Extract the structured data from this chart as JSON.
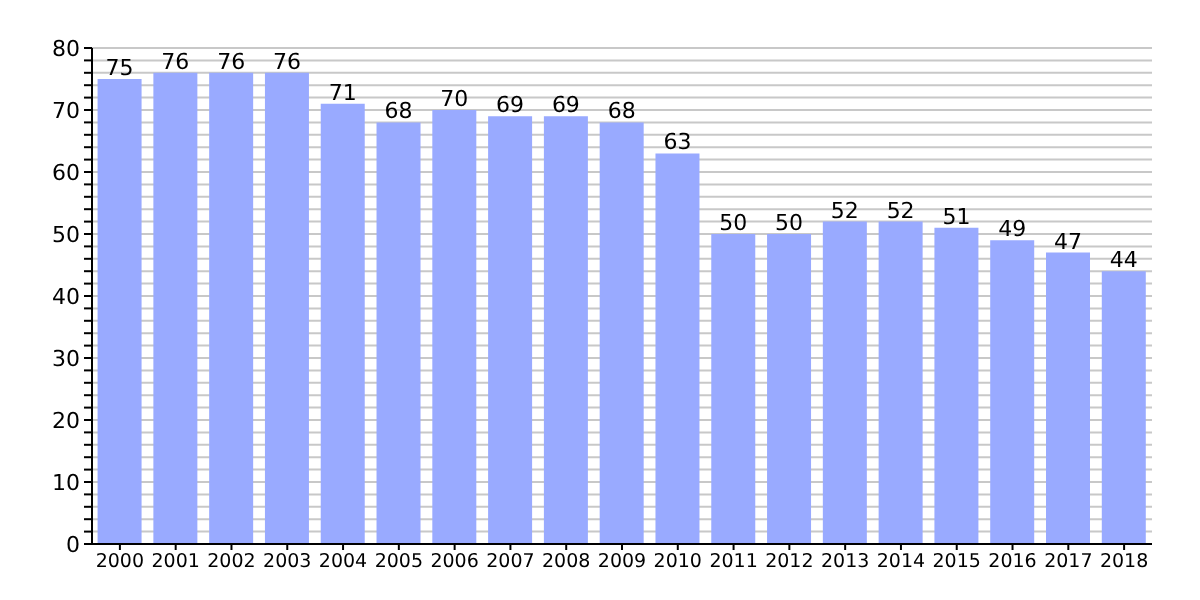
{
  "chart_data": {
    "type": "bar",
    "categories": [
      "2000",
      "2001",
      "2002",
      "2003",
      "2004",
      "2005",
      "2006",
      "2007",
      "2008",
      "2009",
      "2010",
      "2011",
      "2012",
      "2013",
      "2014",
      "2015",
      "2016",
      "2017",
      "2018"
    ],
    "values": [
      75,
      76,
      76,
      76,
      71,
      68,
      70,
      69,
      69,
      68,
      63,
      50,
      50,
      52,
      52,
      51,
      49,
      47,
      44
    ],
    "color": "#99aaff",
    "data_labels": true,
    "grid": "y",
    "ylim": [
      0,
      80
    ],
    "yticks": [
      0,
      {
        "value": 2,
        "label": null
      },
      {
        "value": 4,
        "label": null
      },
      {
        "value": 6,
        "label": null
      },
      {
        "value": 8,
        "label": null
      },
      10,
      {
        "value": 12,
        "label": null
      },
      {
        "value": 14,
        "label": null
      },
      {
        "value": 16,
        "label": null
      },
      {
        "value": 18,
        "label": null
      },
      20,
      {
        "value": 22,
        "label": null
      },
      {
        "value": 24,
        "label": null
      },
      {
        "value": 26,
        "label": null
      },
      {
        "value": 28,
        "label": null
      },
      30,
      {
        "value": 32,
        "label": null
      },
      {
        "value": 34,
        "label": null
      },
      {
        "value": 36,
        "label": null
      },
      {
        "value": 38,
        "label": null
      },
      40,
      {
        "value": 42,
        "label": null
      },
      {
        "value": 44,
        "label": null
      },
      {
        "value": 46,
        "label": null
      },
      {
        "value": 48,
        "label": null
      },
      50,
      {
        "value": 52,
        "label": null
      },
      {
        "value": 54,
        "label": null
      },
      {
        "value": 56,
        "label": null
      },
      {
        "value": 58,
        "label": null
      },
      60,
      {
        "value": 62,
        "label": null
      },
      {
        "value": 64,
        "label": null
      },
      {
        "value": 66,
        "label": null
      },
      {
        "value": 68,
        "label": null
      },
      70,
      {
        "value": 72,
        "label": null
      },
      {
        "value": 74,
        "label": null
      },
      {
        "value": 76,
        "label": null
      },
      {
        "value": 78,
        "label": null
      },
      80
    ]
  }
}
